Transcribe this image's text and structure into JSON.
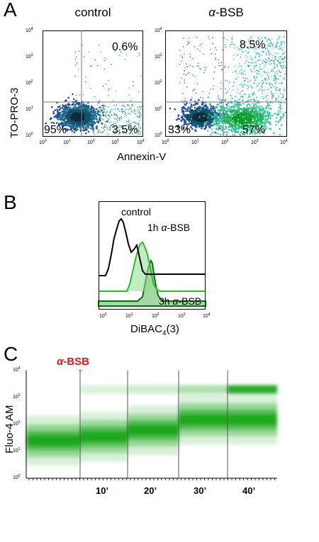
{
  "panel_a": {
    "letter": "A",
    "y_label": "TO-PRO-3",
    "x_label": "Annexin-V",
    "plots": [
      {
        "title": "control",
        "quadrants": {
          "upper_right": "0.6%",
          "lower_left": "95%",
          "lower_right": "3.5%"
        }
      },
      {
        "title": "α-BSB",
        "quadrants": {
          "upper_right": "8.5%",
          "lower_left": "33%",
          "lower_right": "57%"
        }
      }
    ],
    "ticks": [
      "10",
      "10",
      "10",
      "10",
      "10"
    ],
    "tick_exp": [
      "0",
      "1",
      "2",
      "3",
      "4"
    ]
  },
  "panel_b": {
    "letter": "B",
    "x_label": "DiBAC",
    "x_label_sub": "4",
    "x_label_tail": "(3)",
    "traces": [
      {
        "label": "control",
        "color": "#000000"
      },
      {
        "label": "1h α-BSB",
        "color": "#2bbd2b"
      },
      {
        "label": "3h α-BSB",
        "color": "#1a7a1a"
      }
    ]
  },
  "panel_c": {
    "letter": "C",
    "marker": "α-BSB",
    "y_label": "Fluo-4 AM",
    "time_labels": [
      "10’",
      "20’",
      "30’",
      "40’"
    ]
  },
  "chart_data": [
    {
      "type": "scatter",
      "title": "control",
      "xlabel": "Annexin-V",
      "ylabel": "TO-PRO-3",
      "xscale": "log",
      "yscale": "log",
      "xlim": [
        1,
        10000
      ],
      "ylim": [
        1,
        10000
      ],
      "quadrant_percentages": {
        "upper_left": "",
        "upper_right": "0.6%",
        "lower_left": "95%",
        "lower_right": "3.5%"
      }
    },
    {
      "type": "scatter",
      "title": "α-BSB",
      "xlabel": "Annexin-V",
      "ylabel": "TO-PRO-3",
      "xscale": "log",
      "yscale": "log",
      "xlim": [
        1,
        10000
      ],
      "ylim": [
        1,
        10000
      ],
      "quadrant_percentages": {
        "upper_left": "",
        "upper_right": "8.5%",
        "lower_left": "33%",
        "lower_right": "57%"
      }
    },
    {
      "type": "area",
      "xlabel": "DiBAC4(3)",
      "xscale": "log",
      "xlim": [
        1,
        10000
      ],
      "series": [
        {
          "name": "control",
          "peak": 6
        },
        {
          "name": "1h α-BSB",
          "peak": 55
        },
        {
          "name": "3h α-BSB",
          "peak": 100
        }
      ]
    },
    {
      "type": "heatmap",
      "ylabel": "Fluo-4 AM",
      "yscale": "log",
      "ylim": [
        1,
        10000
      ],
      "categories": [
        "",
        "10’",
        "20’",
        "30’",
        "40’"
      ],
      "annotation": "α-BSB",
      "medians": [
        25,
        35,
        60,
        150,
        2000
      ]
    }
  ]
}
